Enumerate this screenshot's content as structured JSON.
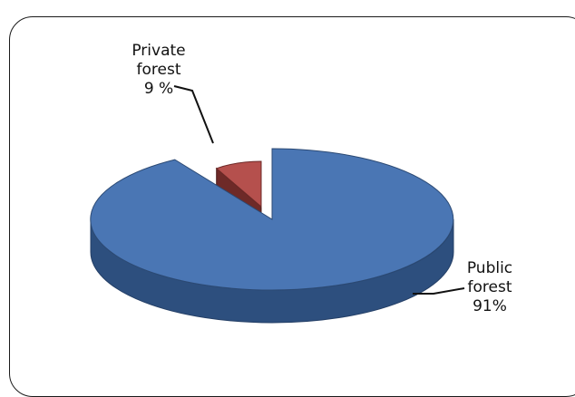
{
  "chart_data": {
    "type": "pie",
    "title": "",
    "slices": [
      {
        "label_lines": [
          "Public",
          "forest",
          "91%"
        ],
        "value": 91,
        "color": "#4a76b4",
        "side_color": "#2d4f7e"
      },
      {
        "label_lines": [
          "Private",
          "forest",
          "9 %"
        ],
        "value": 9,
        "color": "#b5504d",
        "side_color": "#6e2a28"
      }
    ],
    "legend": "none",
    "labels_style": "callout-with-leader-lines"
  }
}
